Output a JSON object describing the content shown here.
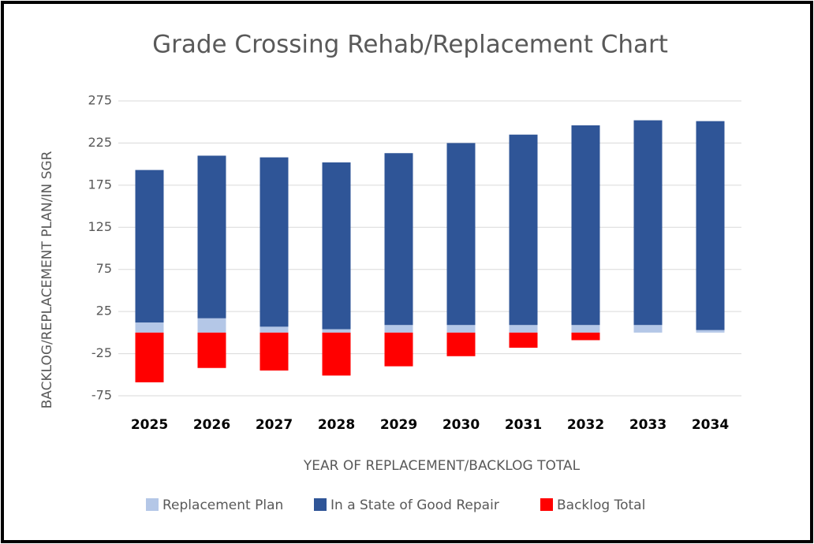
{
  "chart_data": {
    "type": "stacked_bar",
    "title": "Grade Crossing Rehab/Replacement Chart",
    "x_label": "YEAR OF REPLACEMENT/BACKLOG TOTAL",
    "y_label": "BACKLOG/REPLACEMENT PLAN/IN SGR",
    "categories": [
      "2025",
      "2026",
      "2027",
      "2028",
      "2029",
      "2030",
      "2031",
      "2032",
      "2033",
      "2034"
    ],
    "series": [
      {
        "name": "Replacement Plan",
        "color": "#b4c7e7",
        "values": [
          12,
          17,
          7,
          4,
          9,
          9,
          9,
          9,
          9,
          3
        ]
      },
      {
        "name": "In a State of Good Repair",
        "color": "#2f5597",
        "values": [
          181,
          193,
          201,
          198,
          204,
          216,
          226,
          237,
          243,
          248
        ]
      },
      {
        "name": "Backlog Total",
        "color": "#ff0000",
        "values": [
          -59,
          -42,
          -45,
          -51,
          -40,
          -28,
          -18,
          -9,
          0,
          0
        ]
      }
    ],
    "ylim": [
      -75,
      275
    ],
    "yticks": [
      -75,
      -25,
      25,
      75,
      125,
      175,
      225,
      275
    ],
    "grid": true
  }
}
